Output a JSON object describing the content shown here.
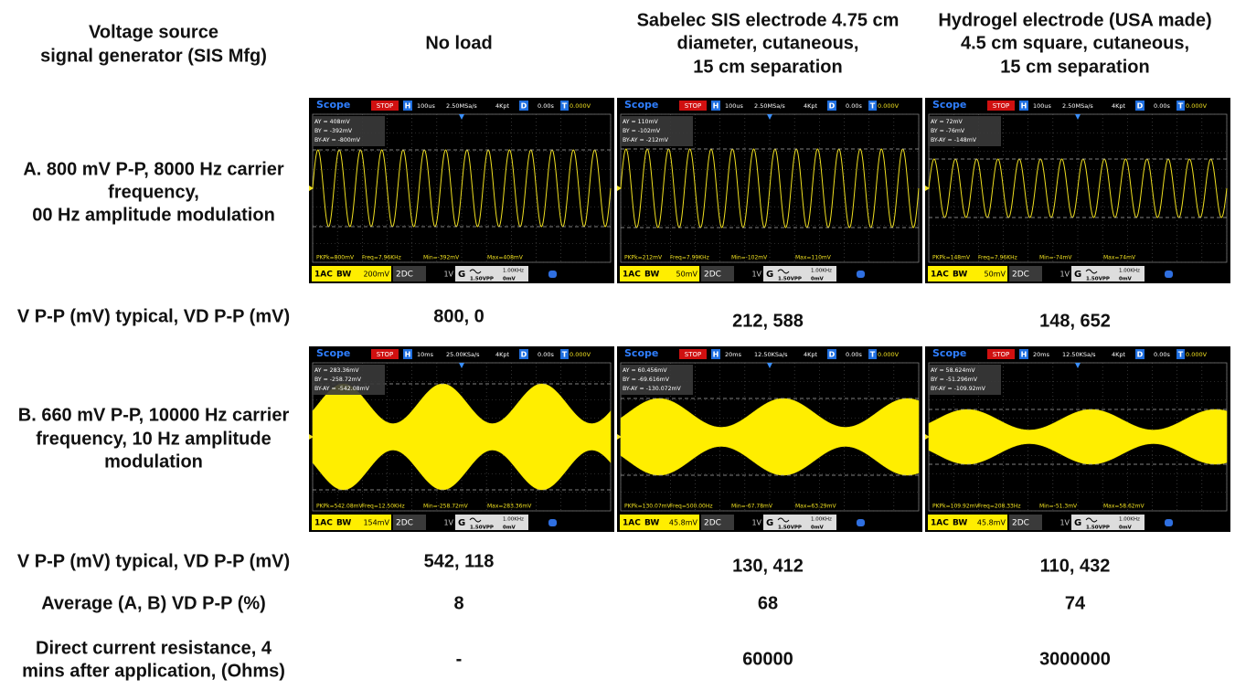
{
  "columns": [
    [
      "Voltage source",
      "signal generator (SIS Mfg)"
    ],
    [
      "No load"
    ],
    [
      "Sabelec SIS electrode 4.75 cm",
      "diameter, cutaneous,",
      "15 cm separation"
    ],
    [
      "Hydrogel electrode (USA made)",
      "4.5 cm square, cutaneous,",
      "15 cm separation"
    ]
  ],
  "rows": [
    {
      "label": [
        "A. 800 mV P-P, 8000 Hz carrier",
        "frequency,",
        "00 Hz amplitude modulation"
      ],
      "scopes": [
        {
          "title": "Scope",
          "state": "STOP",
          "h": "H",
          "timebase": "100us",
          "rate": "2.50MSa/s",
          "mem": "4Kpt",
          "d": "D",
          "delay": "0.00s",
          "t": "T",
          "trig": "0.000V",
          "cursors": [
            "AY   = 408mV",
            "BY   = -392mV",
            "BY-AY = -800mV"
          ],
          "measures": [
            "PKPk=800mV",
            "Freq=7.96KHz",
            "Min=-392mV",
            "Max=408mV"
          ],
          "ch1": "1AC",
          "bw": "BW",
          "ch1scale": "200mV",
          "ch2": "2DC",
          "ch2scale": "1V",
          "gen": "G",
          "genfreq": "1.00KHz",
          "genamp": "1.50VPP",
          "genoff": "0mV"
        },
        {
          "title": "Scope",
          "state": "STOP",
          "h": "H",
          "timebase": "100us",
          "rate": "2.50MSa/s",
          "mem": "4Kpt",
          "d": "D",
          "delay": "0.00s",
          "t": "T",
          "trig": "0.000V",
          "cursors": [
            "AY   = 110mV",
            "BY   = -102mV",
            "BY-AY = -212mV"
          ],
          "measures": [
            "PKPk=212mV",
            "Freq=7.99KHz",
            "Min=-102mV",
            "Max=110mV"
          ],
          "ch1": "1AC",
          "bw": "BW",
          "ch1scale": "50mV",
          "ch2": "2DC",
          "ch2scale": "1V",
          "gen": "G",
          "genfreq": "1.00KHz",
          "genamp": "1.50VPP",
          "genoff": "0mV"
        },
        {
          "title": "Scope",
          "state": "STOP",
          "h": "H",
          "timebase": "100us",
          "rate": "2.50MSa/s",
          "mem": "4Kpt",
          "d": "D",
          "delay": "0.00s",
          "t": "T",
          "trig": "0.000V",
          "cursors": [
            "AY   = 72mV",
            "BY   = -76mV",
            "BY-AY = -148mV"
          ],
          "measures": [
            "PKPk=148mV",
            "Freq=7.96KHz",
            "Min=-74mV",
            "Max=74mV"
          ],
          "ch1": "1AC",
          "bw": "BW",
          "ch1scale": "50mV",
          "ch2": "2DC",
          "ch2scale": "1V",
          "gen": "G",
          "genfreq": "1.00KHz",
          "genamp": "1.50VPP",
          "genoff": "0mV"
        }
      ]
    },
    {
      "label": [
        "V P-P (mV) typical, VD P-P (mV)"
      ],
      "values": [
        "800, 0",
        "212, 588",
        "148, 652"
      ]
    },
    {
      "label": [
        "B. 660 mV P-P, 10000 Hz carrier",
        "frequency, 10 Hz amplitude",
        "modulation"
      ],
      "scopes": [
        {
          "title": "Scope",
          "state": "STOP",
          "h": "H",
          "timebase": "10ms",
          "rate": "25.00KSa/s",
          "mem": "4Kpt",
          "d": "D",
          "delay": "0.00s",
          "t": "T",
          "trig": "0.000V",
          "cursors": [
            "AY   = 283.36mV",
            "BY   = -258.72mV",
            "BY-AY = -542.08mV"
          ],
          "measures": [
            "PKPk=542.08mV",
            "Freq=12.50KHz",
            "Min=-258.72mV",
            "Max=283.36mV"
          ],
          "ch1": "1AC",
          "bw": "BW",
          "ch1scale": "154mV",
          "ch2": "2DC",
          "ch2scale": "1V",
          "gen": "G",
          "genfreq": "1.00KHz",
          "genamp": "1.50VPP",
          "genoff": "0mV"
        },
        {
          "title": "Scope",
          "state": "STOP",
          "h": "H",
          "timebase": "20ms",
          "rate": "12.50KSa/s",
          "mem": "4Kpt",
          "d": "D",
          "delay": "0.00s",
          "t": "T",
          "trig": "0.000V",
          "cursors": [
            "AY   = 60.456mV",
            "BY   = -69.616mV",
            "BY-AY = -130.072mV"
          ],
          "measures": [
            "PKPk=130.07mV",
            "Freq=500.00Hz",
            "Min=-67.78mV",
            "Max=63.29mV"
          ],
          "ch1": "1AC",
          "bw": "BW",
          "ch1scale": "45.8mV",
          "ch2": "2DC",
          "ch2scale": "1V",
          "gen": "G",
          "genfreq": "1.00KHz",
          "genamp": "1.50VPP",
          "genoff": "0mV"
        },
        {
          "title": "Scope",
          "state": "STOP",
          "h": "H",
          "timebase": "20ms",
          "rate": "12.50KSa/s",
          "mem": "4Kpt",
          "d": "D",
          "delay": "0.00s",
          "t": "T",
          "trig": "0.000V",
          "cursors": [
            "AY   = 58.624mV",
            "BY   = -51.296mV",
            "BY-AY = -109.92mV"
          ],
          "measures": [
            "PKPk=109.92mV",
            "Freq=208.33Hz",
            "Min=-51.3mV",
            "Max=58.62mV"
          ],
          "ch1": "1AC",
          "bw": "BW",
          "ch1scale": "45.8mV",
          "ch2": "2DC",
          "ch2scale": "1V",
          "gen": "G",
          "genfreq": "1.00KHz",
          "genamp": "1.50VPP",
          "genoff": "0mV"
        }
      ]
    },
    {
      "label": [
        "V P-P (mV) typical, VD P-P (mV)"
      ],
      "values": [
        "542, 118",
        "130, 412",
        "110, 432"
      ]
    },
    {
      "label": [
        "Average (A, B) VD P-P (%)"
      ],
      "values": [
        "8",
        "68",
        "74"
      ]
    },
    {
      "label": [
        "Direct current resistance, 4",
        "mins after application, (Ohms)"
      ],
      "values": [
        "-",
        "60000",
        "3000000"
      ]
    }
  ]
}
